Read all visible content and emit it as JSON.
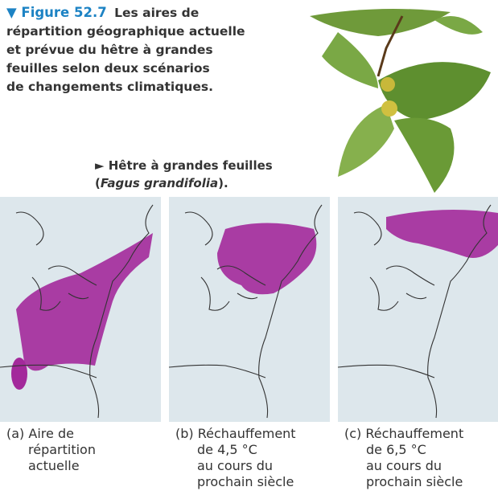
{
  "figure": {
    "label": "▼ Figure 52.7",
    "caption_lines": [
      "Les aires de",
      "répartition géographique actuelle",
      "et prévue du hêtre à grandes",
      "feuilles selon deux scénarios",
      "de changements climatiques."
    ]
  },
  "photo_caption": {
    "line1": "► Hêtre à grandes feuilles",
    "open": "(",
    "species": "Fagus grandifolia",
    "close": ")."
  },
  "panels": [
    {
      "label": "(a)",
      "lines": [
        "Aire de",
        "répartition",
        "actuelle"
      ]
    },
    {
      "label": "(b)",
      "lines": [
        "Réchauffement",
        "de 4,5 °C",
        "au cours du",
        "prochain siècle"
      ]
    },
    {
      "label": "(c)",
      "lines": [
        "Réchauffement",
        "de 6,5 °C",
        "au cours du",
        "prochain siècle"
      ]
    }
  ]
}
